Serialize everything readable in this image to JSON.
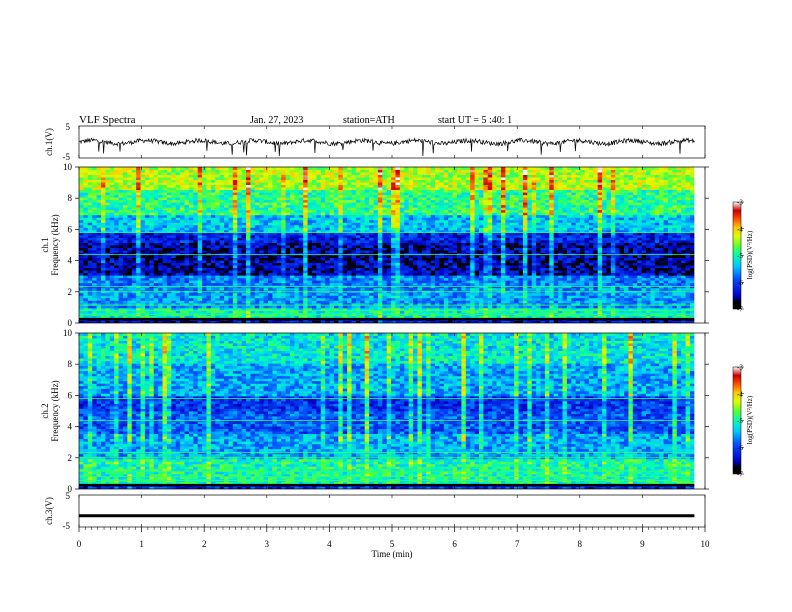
{
  "header": {
    "title": "VLF  Spectra",
    "date": "Jan. 27, 2023",
    "station": "station=ATH",
    "start": "start  UT  =    5  :40: 1"
  },
  "chart_data": [
    {
      "type": "line",
      "panel": "ch1-waveform",
      "ylabel": "ch.1(V)",
      "ylim": [
        -5,
        5
      ],
      "y_ticks": [
        "5",
        "-5"
      ],
      "x_range_min": [
        0,
        9.83
      ],
      "baseline_v": 0,
      "color": "#000000"
    },
    {
      "type": "heatmap",
      "panel": "ch1-spectrogram",
      "ylabel_channel": "ch.1",
      "ylabel": "Frequency (kHz)",
      "ylim": [
        0,
        10
      ],
      "y_ticks": [
        "0",
        "2",
        "4",
        "6",
        "8",
        "10"
      ],
      "x_range_min": [
        0,
        9.83
      ],
      "band_log_psd": [
        {
          "f": [
            0.0,
            0.4
          ],
          "v": -6.4
        },
        {
          "f": [
            0.4,
            1.0
          ],
          "v": -5.1
        },
        {
          "f": [
            1.0,
            2.2
          ],
          "v": -5.6
        },
        {
          "f": [
            2.2,
            3.0
          ],
          "v": -5.7
        },
        {
          "f": [
            3.0,
            5.2
          ],
          "v": -6.5
        },
        {
          "f": [
            5.2,
            5.8
          ],
          "v": -6.2
        },
        {
          "f": [
            5.8,
            7.0
          ],
          "v": -5.4
        },
        {
          "f": [
            7.0,
            8.6
          ],
          "v": -4.9
        },
        {
          "f": [
            8.6,
            10.0
          ],
          "v": -4.4
        }
      ],
      "colorbar": {
        "label": "log(PSD)(V²/Hz)",
        "ticks": [
          "-3",
          "-4",
          "-5",
          "-6",
          "-7"
        ],
        "range": [
          -7,
          -3
        ]
      }
    },
    {
      "type": "heatmap",
      "panel": "ch2-spectrogram",
      "ylabel_channel": "ch.2",
      "ylabel": "Frequency (kHz)",
      "ylim": [
        0,
        10
      ],
      "y_ticks": [
        "0",
        "2",
        "4",
        "6",
        "8",
        "10"
      ],
      "x_range_min": [
        0,
        9.83
      ],
      "band_log_psd": [
        {
          "f": [
            0.0,
            0.4
          ],
          "v": -6.2
        },
        {
          "f": [
            0.4,
            2.0
          ],
          "v": -5.0
        },
        {
          "f": [
            2.0,
            3.5
          ],
          "v": -5.5
        },
        {
          "f": [
            3.5,
            5.0
          ],
          "v": -5.9
        },
        {
          "f": [
            5.0,
            6.0
          ],
          "v": -6.1
        },
        {
          "f": [
            6.0,
            8.0
          ],
          "v": -5.5
        },
        {
          "f": [
            8.0,
            10.0
          ],
          "v": -5.2
        }
      ],
      "colorbar": {
        "label": "log(PSD)(V²/Hz)",
        "ticks": [
          "-3",
          "-4",
          "-5",
          "-6",
          "-7"
        ],
        "range": [
          -7,
          -3
        ]
      }
    },
    {
      "type": "line",
      "panel": "ch3-waveform",
      "ylabel": "ch.3(V)",
      "ylim": [
        -5,
        5
      ],
      "y_ticks": [
        "5",
        "-5"
      ],
      "x_range_min": [
        0,
        9.83
      ],
      "baseline_v": -1.5,
      "color": "#000000"
    }
  ],
  "xaxis": {
    "label": "Time  (min)",
    "range": [
      0,
      10
    ],
    "ticks": [
      "0",
      "1",
      "2",
      "3",
      "4",
      "5",
      "6",
      "7",
      "8",
      "9",
      "10"
    ]
  },
  "colors": {
    "colormap": [
      "#000000",
      "#0000c8",
      "#0050ff",
      "#00c8ff",
      "#00ffb4",
      "#50ff3c",
      "#dcff00",
      "#ffc800",
      "#ff5000",
      "#c80000",
      "#ffffff"
    ]
  }
}
